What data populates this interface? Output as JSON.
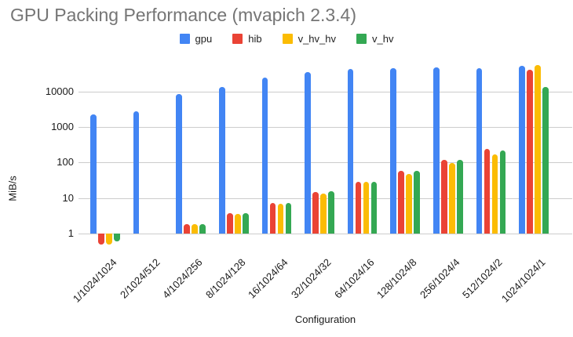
{
  "chart": {
    "title": "GPU Packing Performance (mvapich 2.3.4)",
    "title_color": "#757575",
    "gridline_color": "#cccccc",
    "background_color": "#ffffff"
  },
  "chart_data": {
    "type": "bar",
    "title": "GPU Packing Performance (mvapich 2.3.4)",
    "xlabel": "Configuration",
    "ylabel": "MiB/s",
    "y_scale": "log",
    "ylim": [
      0.4,
      60000
    ],
    "yticks": [
      1,
      10,
      100,
      1000,
      10000
    ],
    "ytick_labels": [
      "1",
      "10",
      "100",
      "1000",
      "10000"
    ],
    "grid": true,
    "legend_position": "top-center",
    "categories": [
      "1/1024/1024",
      "2/1024/512",
      "4/1024/256",
      "8/1024/128",
      "16/1024/64",
      "32/1024/32",
      "64/1024/16",
      "128/1024/8",
      "256/1024/4",
      "512/1024/2",
      "1024/1024/1"
    ],
    "series": [
      {
        "name": "gpu",
        "color": "#4285F4",
        "values": [
          2250,
          2800,
          8400,
          13500,
          24500,
          36000,
          44000,
          46000,
          48000,
          45000,
          52000
        ]
      },
      {
        "name": "hib",
        "color": "#EA4335",
        "values": [
          0.5,
          null,
          1.85,
          3.7,
          7.3,
          14.8,
          29,
          58,
          118,
          240,
          42000
        ]
      },
      {
        "name": "v_hv_hv",
        "color": "#FBBC04",
        "values": [
          0.5,
          null,
          1.8,
          3.6,
          7.0,
          13.7,
          28,
          48,
          95,
          170,
          55000
        ]
      },
      {
        "name": "v_hv",
        "color": "#34A853",
        "values": [
          0.6,
          null,
          1.85,
          3.8,
          7.4,
          15.3,
          29,
          58,
          118,
          215,
          13500
        ]
      }
    ]
  }
}
